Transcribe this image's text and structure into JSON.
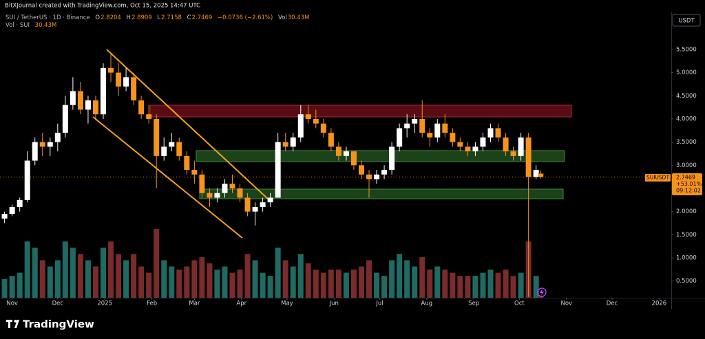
{
  "header": {
    "credit": "BitXJournal created with TradingView.com, Oct 15, 2025 14:47 UTC"
  },
  "chart_data": {
    "type": "candlestick",
    "symbol": "SUI / TetherUS · 1D · Binance",
    "ohlc_labels": [
      "O",
      "H",
      "L",
      "C"
    ],
    "change_label": "−0.0736 (−2.61%)",
    "volume_title": "Vol",
    "volume_pane_title": "Vol · SUI",
    "volume_label": "30.43M",
    "currency": "USDT",
    "last_price_tag": "SUIUSDT",
    "last_change": "+53.01%",
    "countdown": "09:12:02",
    "x": [
      "2024-10-27",
      "2024-11-01",
      "2024-11-06",
      "2024-11-11",
      "2024-11-16",
      "2024-11-21",
      "2024-11-26",
      "2024-12-01",
      "2024-12-06",
      "2024-12-11",
      "2024-12-16",
      "2024-12-21",
      "2024-12-26",
      "2024-12-31",
      "2025-01-05",
      "2025-01-10",
      "2025-01-15",
      "2025-01-20",
      "2025-01-25",
      "2025-01-30",
      "2025-02-04",
      "2025-02-09",
      "2025-02-14",
      "2025-02-19",
      "2025-02-24",
      "2025-03-01",
      "2025-03-06",
      "2025-03-11",
      "2025-03-16",
      "2025-03-21",
      "2025-03-26",
      "2025-03-31",
      "2025-04-05",
      "2025-04-10",
      "2025-04-15",
      "2025-04-20",
      "2025-04-25",
      "2025-04-30",
      "2025-05-05",
      "2025-05-10",
      "2025-05-15",
      "2025-05-20",
      "2025-05-25",
      "2025-05-30",
      "2025-06-04",
      "2025-06-09",
      "2025-06-14",
      "2025-06-19",
      "2025-06-24",
      "2025-06-29",
      "2025-07-04",
      "2025-07-09",
      "2025-07-14",
      "2025-07-19",
      "2025-07-24",
      "2025-07-29",
      "2025-08-03",
      "2025-08-08",
      "2025-08-13",
      "2025-08-18",
      "2025-08-23",
      "2025-08-28",
      "2025-09-02",
      "2025-09-07",
      "2025-09-12",
      "2025-09-17",
      "2025-09-22",
      "2025-09-27",
      "2025-10-02",
      "2025-10-07",
      "2025-10-12",
      "2025-10-15"
    ],
    "open": [
      1.85,
      1.95,
      2.1,
      2.25,
      3.1,
      3.5,
      3.4,
      3.5,
      3.7,
      4.3,
      4.6,
      4.2,
      4.4,
      4.1,
      5.1,
      5.0,
      4.7,
      4.9,
      4.4,
      4.1,
      4.0,
      3.2,
      3.4,
      3.5,
      3.2,
      2.9,
      2.8,
      2.4,
      2.3,
      2.4,
      2.6,
      2.5,
      2.3,
      2.0,
      2.1,
      2.2,
      2.3,
      3.5,
      3.4,
      3.6,
      4.1,
      4.0,
      3.9,
      3.7,
      3.4,
      3.2,
      3.3,
      3.0,
      2.8,
      2.7,
      2.8,
      2.9,
      3.4,
      3.8,
      3.9,
      4.0,
      3.7,
      3.6,
      3.9,
      3.7,
      3.5,
      3.4,
      3.3,
      3.4,
      3.6,
      3.8,
      3.6,
      3.3,
      3.2,
      3.6,
      2.75,
      2.8204
    ],
    "high": [
      2.0,
      2.15,
      2.3,
      3.3,
      3.6,
      3.7,
      3.6,
      3.9,
      4.5,
      4.9,
      4.8,
      4.5,
      4.5,
      5.2,
      5.4,
      5.2,
      5.1,
      5.0,
      4.5,
      4.3,
      4.1,
      3.6,
      3.7,
      3.6,
      3.3,
      3.1,
      2.9,
      2.5,
      2.5,
      2.7,
      2.8,
      2.6,
      2.4,
      2.2,
      2.3,
      2.4,
      3.7,
      3.7,
      3.7,
      4.3,
      4.3,
      4.2,
      4.0,
      3.8,
      3.5,
      3.4,
      3.3,
      3.1,
      2.9,
      2.9,
      3.0,
      3.5,
      3.9,
      4.1,
      4.1,
      4.4,
      3.8,
      4.0,
      4.1,
      3.8,
      3.6,
      3.5,
      3.5,
      3.7,
      3.9,
      3.9,
      3.7,
      3.4,
      3.7,
      3.7,
      3.0,
      2.8909
    ],
    "low": [
      1.75,
      1.9,
      2.0,
      2.2,
      3.0,
      3.2,
      3.2,
      3.3,
      3.6,
      4.2,
      4.1,
      3.9,
      4.0,
      4.0,
      4.8,
      4.5,
      4.6,
      4.3,
      4.0,
      3.9,
      2.5,
      3.1,
      3.3,
      3.1,
      2.8,
      2.6,
      2.3,
      2.1,
      2.2,
      2.3,
      2.4,
      2.2,
      1.9,
      1.7,
      2.0,
      2.1,
      2.3,
      3.3,
      3.3,
      3.5,
      3.9,
      3.8,
      3.6,
      3.3,
      3.1,
      3.1,
      2.9,
      2.7,
      2.3,
      2.6,
      2.7,
      2.8,
      3.3,
      3.6,
      3.7,
      3.6,
      3.4,
      3.5,
      3.6,
      3.4,
      3.3,
      3.2,
      3.2,
      3.3,
      3.5,
      3.5,
      3.2,
      3.1,
      3.1,
      0.16,
      2.7,
      2.7158
    ],
    "close": [
      1.95,
      2.1,
      2.25,
      3.1,
      3.5,
      3.4,
      3.5,
      3.7,
      4.3,
      4.6,
      4.2,
      4.4,
      4.1,
      5.1,
      5.0,
      4.7,
      4.9,
      4.4,
      4.1,
      4.0,
      3.2,
      3.4,
      3.5,
      3.2,
      2.9,
      2.8,
      2.4,
      2.3,
      2.4,
      2.6,
      2.5,
      2.3,
      2.0,
      2.1,
      2.2,
      2.3,
      3.5,
      3.4,
      3.6,
      4.1,
      4.0,
      3.9,
      3.7,
      3.4,
      3.2,
      3.3,
      3.0,
      2.8,
      2.7,
      2.8,
      2.9,
      3.4,
      3.8,
      3.9,
      4.0,
      3.7,
      3.6,
      3.9,
      3.7,
      3.5,
      3.4,
      3.3,
      3.4,
      3.6,
      3.8,
      3.6,
      3.3,
      3.2,
      3.6,
      2.75,
      2.9,
      2.7469
    ],
    "volume": [
      300,
      350,
      400,
      900,
      800,
      600,
      500,
      600,
      900,
      800,
      700,
      600,
      500,
      800,
      900,
      700,
      600,
      700,
      500,
      400,
      1100,
      600,
      500,
      450,
      500,
      600,
      650,
      550,
      450,
      500,
      400,
      450,
      700,
      600,
      400,
      350,
      800,
      600,
      500,
      700,
      550,
      450,
      400,
      450,
      450,
      400,
      450,
      500,
      600,
      400,
      350,
      600,
      700,
      600,
      500,
      650,
      450,
      500,
      450,
      400,
      350,
      350,
      350,
      400,
      450,
      400,
      450,
      350,
      400,
      900,
      350,
      30.43
    ],
    "up_color": "#ffffff",
    "down_color": "#f7931a",
    "volume_up_color": "#1f6b63",
    "volume_down_color": "#7a2b2b",
    "xlim": [
      "2024-10-24",
      "2026-01-09"
    ],
    "xticks": [
      {
        "value": "2024-11-01",
        "label": "Nov"
      },
      {
        "value": "2024-12-01",
        "label": "Dec"
      },
      {
        "value": "2025-01-01",
        "label": "2025"
      },
      {
        "value": "2025-02-01",
        "label": "Feb"
      },
      {
        "value": "2025-03-01",
        "label": "Mar"
      },
      {
        "value": "2025-04-01",
        "label": "Apr"
      },
      {
        "value": "2025-05-01",
        "label": "May"
      },
      {
        "value": "2025-06-01",
        "label": "Jun"
      },
      {
        "value": "2025-07-01",
        "label": "Jul"
      },
      {
        "value": "2025-08-01",
        "label": "Aug"
      },
      {
        "value": "2025-09-01",
        "label": "Sep"
      },
      {
        "value": "2025-10-01",
        "label": "Oct"
      },
      {
        "value": "2025-11-01",
        "label": "Nov"
      },
      {
        "value": "2025-12-01",
        "label": "Dec"
      },
      {
        "value": "2026-01-01",
        "label": "2026"
      }
    ],
    "ylim": [
      0.14,
      6.3
    ],
    "yticks": [
      {
        "value": 0.5,
        "label": "0.5000"
      },
      {
        "value": 1,
        "label": "1.0000"
      },
      {
        "value": 1.5,
        "label": "1.5000"
      },
      {
        "value": 2,
        "label": "2.0000"
      },
      {
        "value": 2.5,
        "label": "2.5000"
      },
      {
        "value": 3,
        "label": "3.0000"
      },
      {
        "value": 3.5,
        "label": "3.5000"
      },
      {
        "value": 4,
        "label": "4.0000"
      },
      {
        "value": 4.5,
        "label": "4.5000"
      },
      {
        "value": 5,
        "label": "5.0000"
      },
      {
        "value": 5.5,
        "label": "5.5000"
      }
    ],
    "grid": false
  },
  "footer": {
    "brand": "TradingView"
  }
}
